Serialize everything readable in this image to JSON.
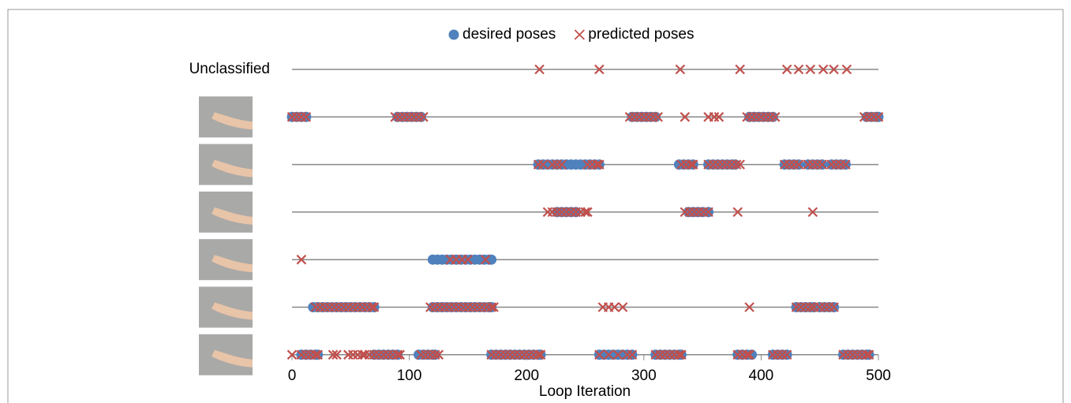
{
  "chart_data": {
    "type": "scatter",
    "x_label": "Loop Iteration",
    "categories": [
      "Unclassified",
      null,
      null,
      null,
      null,
      null,
      null
    ],
    "xlim": [
      0,
      500
    ],
    "xticks": [
      0,
      100,
      200,
      300,
      400,
      500
    ],
    "legend": "top",
    "series": [
      {
        "name": "desired poses",
        "color": "#4f81bd",
        "marker": "circle",
        "values": [
          [],
          [
            0,
            4,
            8,
            12,
            90,
            94,
            98,
            102,
            106,
            110,
            290,
            294,
            298,
            302,
            306,
            310,
            390,
            394,
            398,
            402,
            406,
            410,
            490,
            494,
            498,
            500
          ],
          [
            210,
            214,
            218,
            222,
            226,
            230,
            234,
            238,
            242,
            246,
            250,
            254,
            258,
            262,
            330,
            334,
            338,
            342,
            355,
            359,
            363,
            367,
            371,
            375,
            378,
            420,
            424,
            428,
            432,
            440,
            444,
            448,
            452,
            460,
            464,
            468,
            472
          ],
          [
            226,
            230,
            234,
            238,
            242,
            338,
            342,
            346,
            350,
            355
          ],
          [
            120,
            124,
            128,
            132,
            136,
            140,
            144,
            148,
            152,
            156,
            160,
            164,
            168,
            170
          ],
          [
            18,
            22,
            26,
            30,
            34,
            38,
            42,
            46,
            50,
            54,
            58,
            62,
            66,
            70,
            120,
            124,
            128,
            132,
            136,
            140,
            144,
            148,
            152,
            156,
            160,
            164,
            168,
            170,
            430,
            434,
            438,
            442,
            445,
            450,
            454,
            458,
            462
          ],
          [
            8,
            12,
            16,
            20,
            22,
            70,
            74,
            78,
            82,
            86,
            90,
            108,
            112,
            116,
            120,
            122,
            170,
            174,
            178,
            182,
            186,
            190,
            194,
            198,
            202,
            206,
            210,
            212,
            262,
            266,
            270,
            274,
            278,
            282,
            286,
            290,
            310,
            314,
            318,
            322,
            326,
            330,
            332,
            380,
            384,
            388,
            392,
            410,
            414,
            418,
            422,
            470,
            474,
            478,
            482,
            486,
            490,
            492
          ]
        ]
      },
      {
        "name": "predicted poses",
        "color": "#c0504d",
        "marker": "x",
        "values": [
          [
            211,
            262,
            331,
            382,
            422,
            432,
            442,
            453,
            462,
            473
          ],
          [
            0,
            4,
            8,
            12,
            88,
            92,
            96,
            100,
            104,
            108,
            112,
            288,
            292,
            296,
            300,
            304,
            308,
            312,
            335,
            355,
            360,
            364,
            388,
            392,
            396,
            400,
            404,
            408,
            412,
            488,
            492,
            496,
            500
          ],
          [
            210,
            214,
            222,
            226,
            230,
            252,
            256,
            260,
            262,
            332,
            336,
            340,
            342,
            355,
            359,
            363,
            367,
            371,
            375,
            379,
            382,
            420,
            424,
            428,
            432,
            440,
            444,
            448,
            452,
            460,
            464,
            468,
            472
          ],
          [
            218,
            222,
            226,
            230,
            234,
            238,
            242,
            246,
            250,
            252,
            335,
            339,
            343,
            347,
            351,
            355,
            380,
            444
          ],
          [
            8,
            135,
            140,
            145,
            150,
            165
          ],
          [
            20,
            24,
            28,
            32,
            36,
            40,
            44,
            48,
            52,
            56,
            60,
            64,
            68,
            70,
            118,
            122,
            126,
            130,
            134,
            138,
            142,
            146,
            150,
            154,
            158,
            162,
            166,
            170,
            172,
            265,
            270,
            275,
            282,
            390,
            430,
            434,
            438,
            442,
            445,
            450,
            454,
            458,
            462
          ],
          [
            0,
            8,
            12,
            16,
            20,
            22,
            35,
            38,
            48,
            52,
            56,
            60,
            62,
            66,
            70,
            74,
            78,
            82,
            86,
            90,
            92,
            110,
            114,
            118,
            122,
            125,
            170,
            174,
            178,
            182,
            186,
            190,
            194,
            198,
            202,
            206,
            210,
            212,
            262,
            270,
            278,
            286,
            290,
            310,
            314,
            318,
            322,
            326,
            330,
            332,
            380,
            384,
            388,
            390,
            410,
            414,
            418,
            422,
            470,
            474,
            478,
            482,
            486,
            490,
            492
          ]
        ]
      }
    ]
  }
}
